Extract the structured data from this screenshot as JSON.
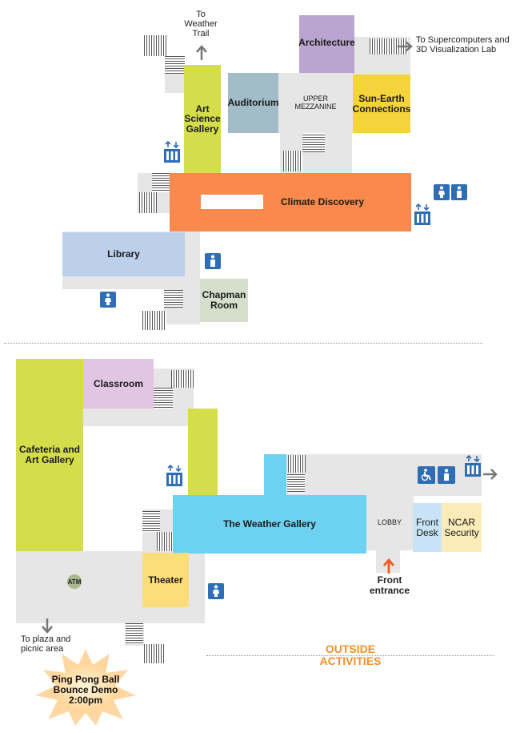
{
  "colors": {
    "corridor": "#e6e6e6",
    "architecture": "#b9a5cf",
    "auditorium": "#a2bcc8",
    "sun_earth": "#f5d33a",
    "art_science": "#d4dd4a",
    "climate": "#f9894c",
    "library": "#bcd0ec",
    "chapman": "#d6dfcb",
    "cafeteria": "#d4dd4a",
    "classroom": "#e2c5e2",
    "weather_gallery": "#6dd1f2",
    "theater": "#fbdd7a",
    "front_desk": "#c8e3f5",
    "ncar_security": "#faebb8",
    "accent_orange": "#f5902b",
    "icon_blue": "#2f6db5"
  },
  "upper": {
    "architecture": "Architecture",
    "auditorium": "Auditorium",
    "upper_mezzanine": "UPPER MEZZANINE",
    "sun_earth": "Sun-Earth Connections",
    "art_science": "Art Science Gallery",
    "climate": "Climate Discovery",
    "library": "Library",
    "chapman": "Chapman Room",
    "to_weather_trail": "To Weather Trail",
    "to_supercomputers": "To Supercomputers and 3D Visualization Lab"
  },
  "lower": {
    "classroom": "Classroom",
    "cafeteria": "Cafeteria and Art Gallery",
    "weather_gallery": "The Weather Gallery",
    "lobby": "LOBBY",
    "front_desk": "Front Desk",
    "ncar_security": "NCAR Security",
    "theater": "Theater",
    "atm": "ATM",
    "front_entrance": "Front entrance",
    "to_plaza": "To plaza and picnic area",
    "outside_activities": "OUTSIDE ACTIVITIES",
    "ping_pong": "Ping Pong Ball Bounce Demo 2:00pm"
  },
  "icons": [
    "elevator-icon",
    "restroom-women-icon",
    "restroom-men-icon",
    "accessible-icon",
    "arrow-icon",
    "stairs-icon",
    "atm-icon",
    "starburst-icon"
  ]
}
